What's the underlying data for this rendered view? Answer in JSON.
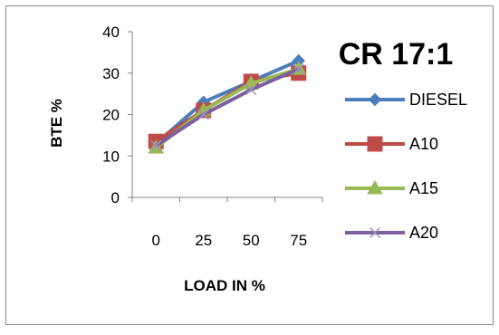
{
  "chart_data": {
    "type": "line",
    "title": "CR 17:1",
    "xlabel": "LOAD IN %",
    "ylabel": "BTE %",
    "categories": [
      "0",
      "25",
      "50",
      "75"
    ],
    "ylim": [
      0,
      40
    ],
    "yticks": [
      "0",
      "10",
      "20",
      "30",
      "40"
    ],
    "grid": false,
    "legend_position": "right",
    "series": [
      {
        "name": "DIESEL",
        "values": [
          13,
          23,
          28,
          33
        ],
        "color": "#4a7ebb",
        "marker": "diamond"
      },
      {
        "name": "A10",
        "values": [
          13.5,
          21,
          28,
          30
        ],
        "color": "#be4b48",
        "marker": "square"
      },
      {
        "name": "A15",
        "values": [
          12,
          21,
          27.5,
          31
        ],
        "color": "#98b954",
        "marker": "triangle"
      },
      {
        "name": "A20",
        "values": [
          12.5,
          20,
          26,
          31
        ],
        "color": "#7d60a0",
        "marker": "x"
      }
    ]
  }
}
